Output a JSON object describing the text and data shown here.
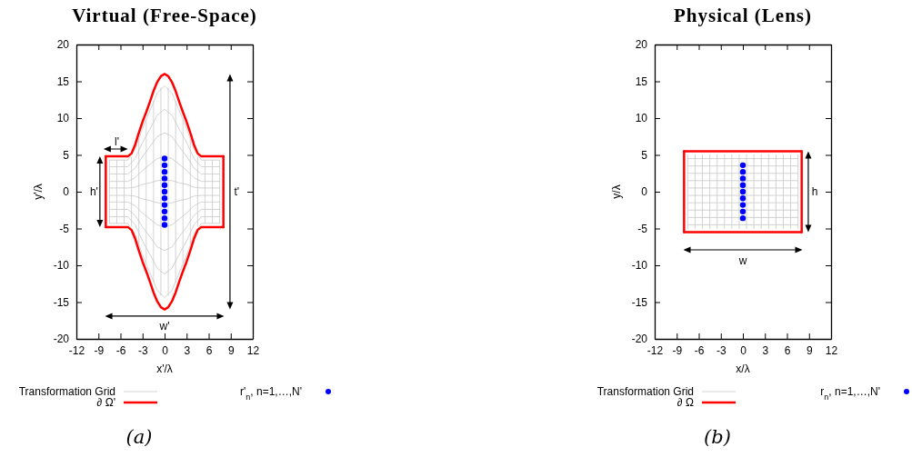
{
  "chart_data": [
    {
      "type": "line",
      "title": "Virtual (Free-Space)",
      "xlabel": "x'/λ",
      "ylabel": "y'/λ",
      "xlim": [
        -12,
        12
      ],
      "ylim": [
        -20,
        20
      ],
      "xticks": [
        -12,
        -9,
        -6,
        -3,
        0,
        3,
        6,
        9,
        12
      ],
      "yticks": [
        -20,
        -15,
        -10,
        -5,
        0,
        5,
        10,
        15,
        20
      ],
      "legend": "bottom",
      "annotations": [
        "l'",
        "h'",
        "t'",
        "w'",
        "(a)"
      ],
      "series": [
        {
          "name": "Transformation Grid",
          "type": "line",
          "color": "#c8c8c8",
          "x": [
            -7.5,
            -5,
            -4,
            -3,
            -2,
            -1,
            0,
            1,
            2,
            3,
            4,
            5,
            7.5
          ],
          "values": [
            4.3,
            4.3,
            5.8,
            8.6,
            11,
            13.4,
            14.4,
            13.4,
            11,
            8.6,
            5.8,
            4.3,
            4.3
          ]
        },
        {
          "type": "line",
          "color": "#c8c8c8",
          "x": [
            -7.5,
            -5,
            -4,
            -3,
            -2,
            -1,
            0,
            1,
            2,
            3,
            4,
            5,
            7.5
          ],
          "values": [
            3.4,
            3.4,
            4.5,
            6.7,
            8.5,
            10.4,
            11.2,
            10.4,
            8.5,
            6.7,
            4.5,
            3.4,
            3.4
          ]
        },
        {
          "type": "line",
          "color": "#c8c8c8",
          "x": [
            -7.5,
            -5,
            -4,
            -3,
            -2,
            -1,
            0,
            1,
            2,
            3,
            4,
            5,
            7.5
          ],
          "values": [
            2.4,
            2.4,
            3.2,
            4.8,
            6.1,
            7.5,
            8,
            7.5,
            6.1,
            4.8,
            3.2,
            2.4,
            2.4
          ]
        },
        {
          "type": "line",
          "color": "#c8c8c8",
          "x": [
            -7.5,
            -5,
            -4,
            -3,
            -2,
            -1,
            0,
            1,
            2,
            3,
            4,
            5,
            7.5
          ],
          "values": [
            1.4,
            1.4,
            1.9,
            2.9,
            3.7,
            4.5,
            4.8,
            4.5,
            3.7,
            2.9,
            1.9,
            1.4,
            1.4
          ]
        },
        {
          "type": "line",
          "color": "#c8c8c8",
          "x": [
            -7.5,
            -5,
            -4,
            -3,
            -2,
            -1,
            0,
            1,
            2,
            3,
            4,
            5,
            7.5
          ],
          "values": [
            0.5,
            0.5,
            0.6,
            1,
            1.2,
            1.5,
            1.6,
            1.5,
            1.2,
            1,
            0.6,
            0.5,
            0.5
          ]
        },
        {
          "type": "line",
          "color": "#c8c8c8",
          "x": [
            -7.5,
            -5,
            -4,
            -3,
            -2,
            -1,
            0,
            1,
            2,
            3,
            4,
            5,
            7.5
          ],
          "values": [
            -0.5,
            -0.5,
            -0.6,
            -1,
            -1.2,
            -1.5,
            -1.6,
            -1.5,
            -1.2,
            -1,
            -0.6,
            -0.5,
            -0.5
          ]
        },
        {
          "type": "line",
          "color": "#c8c8c8",
          "x": [
            -7.5,
            -5,
            -4,
            -3,
            -2,
            -1,
            0,
            1,
            2,
            3,
            4,
            5,
            7.5
          ],
          "values": [
            -1.4,
            -1.4,
            -1.9,
            -2.9,
            -3.7,
            -4.5,
            -4.8,
            -4.5,
            -3.7,
            -2.9,
            -1.9,
            -1.4,
            -1.4
          ]
        },
        {
          "type": "line",
          "color": "#c8c8c8",
          "x": [
            -7.5,
            -5,
            -4,
            -3,
            -2,
            -1,
            0,
            1,
            2,
            3,
            4,
            5,
            7.5
          ],
          "values": [
            -2.4,
            -2.4,
            -3.2,
            -4.8,
            -6.1,
            -7.5,
            -8,
            -7.5,
            -6.1,
            -4.8,
            -3.2,
            -2.4,
            -2.4
          ]
        },
        {
          "type": "line",
          "color": "#c8c8c8",
          "x": [
            -7.5,
            -5,
            -4,
            -3,
            -2,
            -1,
            0,
            1,
            2,
            3,
            4,
            5,
            7.5
          ],
          "values": [
            -3.4,
            -3.4,
            -4.5,
            -6.7,
            -8.5,
            -10.4,
            -11.2,
            -10.4,
            -8.5,
            -6.7,
            -4.5,
            -3.4,
            -3.4
          ]
        },
        {
          "type": "line",
          "color": "#c8c8c8",
          "x": [
            -7.5,
            -5,
            -4,
            -3,
            -2,
            -1,
            0,
            1,
            2,
            3,
            4,
            5,
            7.5
          ],
          "values": [
            -4.3,
            -4.3,
            -5.8,
            -8.6,
            -11,
            -13.4,
            -14.4,
            -13.4,
            -11,
            -8.6,
            -5.8,
            -4.3,
            -4.3
          ]
        },
        {
          "type": "line",
          "color": "#c8c8c8",
          "x": [
            -7.5,
            -7.5
          ],
          "values": [
            -4.3,
            4.3
          ]
        },
        {
          "type": "line",
          "color": "#c8c8c8",
          "x": [
            -6.5,
            -6.5
          ],
          "values": [
            -4.3,
            4.3
          ]
        },
        {
          "type": "line",
          "color": "#c8c8c8",
          "x": [
            -5.5,
            -5.5
          ],
          "values": [
            -4.3,
            4.3
          ]
        },
        {
          "type": "line",
          "color": "#c8c8c8",
          "x": [
            -4.5,
            -4.5
          ],
          "values": [
            -4.7,
            4.7
          ]
        },
        {
          "type": "line",
          "color": "#c8c8c8",
          "x": [
            -3.5,
            -3.5
          ],
          "values": [
            -7.2,
            7.2
          ]
        },
        {
          "type": "line",
          "color": "#c8c8c8",
          "x": [
            -2.5,
            -2.5
          ],
          "values": [
            -9.7,
            9.7
          ]
        },
        {
          "type": "line",
          "color": "#c8c8c8",
          "x": [
            -1.5,
            -1.5
          ],
          "values": [
            -12.3,
            12.3
          ]
        },
        {
          "type": "line",
          "color": "#c8c8c8",
          "x": [
            -0.5,
            -0.5
          ],
          "values": [
            -14.1,
            14.1
          ]
        },
        {
          "type": "line",
          "color": "#c8c8c8",
          "x": [
            0.5,
            0.5
          ],
          "values": [
            -14.1,
            14.1
          ]
        },
        {
          "type": "line",
          "color": "#c8c8c8",
          "x": [
            1.5,
            1.5
          ],
          "values": [
            -12.3,
            12.3
          ]
        },
        {
          "type": "line",
          "color": "#c8c8c8",
          "x": [
            2.5,
            2.5
          ],
          "values": [
            -9.7,
            9.7
          ]
        },
        {
          "type": "line",
          "color": "#c8c8c8",
          "x": [
            3.5,
            3.5
          ],
          "values": [
            -7.2,
            7.2
          ]
        },
        {
          "type": "line",
          "color": "#c8c8c8",
          "x": [
            4.5,
            4.5
          ],
          "values": [
            -4.7,
            4.7
          ]
        },
        {
          "type": "line",
          "color": "#c8c8c8",
          "x": [
            5.5,
            5.5
          ],
          "values": [
            -4.3,
            4.3
          ]
        },
        {
          "type": "line",
          "color": "#c8c8c8",
          "x": [
            6.5,
            6.5
          ],
          "values": [
            -4.3,
            4.3
          ]
        },
        {
          "type": "line",
          "color": "#c8c8c8",
          "x": [
            7.5,
            7.5
          ],
          "values": [
            -4.3,
            4.3
          ]
        },
        {
          "name": "∂ Ω'",
          "type": "line",
          "color": "#ff0000",
          "x": [
            -8,
            -5,
            -4.5,
            -4,
            -3.5,
            -3,
            -2.5,
            -2,
            -1.5,
            -1,
            -0.5,
            0,
            0.5,
            1,
            1.5,
            2,
            2.5,
            3,
            3.5,
            4,
            4.5,
            5,
            8
          ],
          "values": [
            4.8,
            4.8,
            5.2,
            6.4,
            8,
            9.5,
            10.8,
            12.2,
            13.7,
            14.9,
            15.7,
            16,
            15.7,
            14.9,
            13.7,
            12.2,
            10.8,
            9.5,
            8,
            6.4,
            5.2,
            4.8,
            4.8
          ]
        },
        {
          "type": "line",
          "color": "#ff0000",
          "x": [
            -8,
            -5,
            -4.5,
            -4,
            -3.5,
            -3,
            -2.5,
            -2,
            -1.5,
            -1,
            -0.5,
            0,
            0.5,
            1,
            1.5,
            2,
            2.5,
            3,
            3.5,
            4,
            4.5,
            5,
            8
          ],
          "values": [
            -4.8,
            -4.8,
            -5.2,
            -6.4,
            -8,
            -9.5,
            -10.8,
            -12.2,
            -13.7,
            -14.9,
            -15.7,
            -16,
            -15.7,
            -14.9,
            -13.7,
            -12.2,
            -10.8,
            -9.5,
            -8,
            -6.4,
            -5.2,
            -4.8,
            -4.8
          ]
        },
        {
          "type": "line",
          "color": "#ff0000",
          "x": [
            -8,
            -8
          ],
          "values": [
            -4.8,
            4.8
          ]
        },
        {
          "type": "line",
          "color": "#ff0000",
          "x": [
            8,
            8
          ],
          "values": [
            -4.8,
            4.8
          ]
        },
        {
          "name": "r'$_{n}$, n=1,…,N'",
          "type": "scatter",
          "marker": "circle",
          "color": "#0000ff",
          "x": [
            0,
            0,
            0,
            0,
            0,
            0,
            0,
            0,
            0,
            0,
            0
          ],
          "values": [
            -4.5,
            -3.6,
            -2.7,
            -1.8,
            -0.9,
            0,
            0.9,
            1.8,
            2.7,
            3.6,
            4.5
          ]
        }
      ]
    },
    {
      "type": "line",
      "title": "Physical (Lens)",
      "xlabel": "x/λ",
      "ylabel": "y/λ",
      "xlim": [
        -12,
        12
      ],
      "ylim": [
        -20,
        20
      ],
      "xticks": [
        -12,
        -9,
        -6,
        -3,
        0,
        3,
        6,
        9,
        12
      ],
      "yticks": [
        -20,
        -15,
        -10,
        -5,
        0,
        5,
        10,
        15,
        20
      ],
      "legend": "bottom",
      "annotations": [
        "h",
        "w",
        "(b)"
      ],
      "series": [
        {
          "name": "Transformation Grid",
          "type": "line",
          "color": "#c8c8c8",
          "x": [
            -7.5,
            -7.5
          ],
          "values": [
            -5,
            5
          ]
        },
        {
          "type": "line",
          "color": "#c8c8c8",
          "x": [
            -6.5,
            -6.5
          ],
          "values": [
            -5,
            5
          ]
        },
        {
          "type": "line",
          "color": "#c8c8c8",
          "x": [
            -5.5,
            -5.5
          ],
          "values": [
            -5,
            5
          ]
        },
        {
          "type": "line",
          "color": "#c8c8c8",
          "x": [
            -4.5,
            -4.5
          ],
          "values": [
            -5,
            5
          ]
        },
        {
          "type": "line",
          "color": "#c8c8c8",
          "x": [
            -3.5,
            -3.5
          ],
          "values": [
            -5,
            5
          ]
        },
        {
          "type": "line",
          "color": "#c8c8c8",
          "x": [
            -2.5,
            -2.5
          ],
          "values": [
            -5,
            5
          ]
        },
        {
          "type": "line",
          "color": "#c8c8c8",
          "x": [
            -1.5,
            -1.5
          ],
          "values": [
            -5,
            5
          ]
        },
        {
          "type": "line",
          "color": "#c8c8c8",
          "x": [
            -0.5,
            -0.5
          ],
          "values": [
            -5,
            5
          ]
        },
        {
          "type": "line",
          "color": "#c8c8c8",
          "x": [
            0.5,
            0.5
          ],
          "values": [
            -5,
            5
          ]
        },
        {
          "type": "line",
          "color": "#c8c8c8",
          "x": [
            1.5,
            1.5
          ],
          "values": [
            -5,
            5
          ]
        },
        {
          "type": "line",
          "color": "#c8c8c8",
          "x": [
            2.5,
            2.5
          ],
          "values": [
            -5,
            5
          ]
        },
        {
          "type": "line",
          "color": "#c8c8c8",
          "x": [
            3.5,
            3.5
          ],
          "values": [
            -5,
            5
          ]
        },
        {
          "type": "line",
          "color": "#c8c8c8",
          "x": [
            4.5,
            4.5
          ],
          "values": [
            -5,
            5
          ]
        },
        {
          "type": "line",
          "color": "#c8c8c8",
          "x": [
            5.5,
            5.5
          ],
          "values": [
            -5,
            5
          ]
        },
        {
          "type": "line",
          "color": "#c8c8c8",
          "x": [
            6.5,
            6.5
          ],
          "values": [
            -5,
            5
          ]
        },
        {
          "type": "line",
          "color": "#c8c8c8",
          "x": [
            7.5,
            7.5
          ],
          "values": [
            -5,
            5
          ]
        },
        {
          "type": "line",
          "color": "#c8c8c8",
          "x": [
            -7.5,
            7.5
          ],
          "values": [
            -4.5,
            -4.5
          ]
        },
        {
          "type": "line",
          "color": "#c8c8c8",
          "x": [
            -7.5,
            7.5
          ],
          "values": [
            -3.5,
            -3.5
          ]
        },
        {
          "type": "line",
          "color": "#c8c8c8",
          "x": [
            -7.5,
            7.5
          ],
          "values": [
            -2.5,
            -2.5
          ]
        },
        {
          "type": "line",
          "color": "#c8c8c8",
          "x": [
            -7.5,
            7.5
          ],
          "values": [
            -1.5,
            -1.5
          ]
        },
        {
          "type": "line",
          "color": "#c8c8c8",
          "x": [
            -7.5,
            7.5
          ],
          "values": [
            -0.5,
            -0.5
          ]
        },
        {
          "type": "line",
          "color": "#c8c8c8",
          "x": [
            -7.5,
            7.5
          ],
          "values": [
            0.5,
            0.5
          ]
        },
        {
          "type": "line",
          "color": "#c8c8c8",
          "x": [
            -7.5,
            7.5
          ],
          "values": [
            1.5,
            1.5
          ]
        },
        {
          "type": "line",
          "color": "#c8c8c8",
          "x": [
            -7.5,
            7.5
          ],
          "values": [
            2.5,
            2.5
          ]
        },
        {
          "type": "line",
          "color": "#c8c8c8",
          "x": [
            -7.5,
            7.5
          ],
          "values": [
            3.5,
            3.5
          ]
        },
        {
          "type": "line",
          "color": "#c8c8c8",
          "x": [
            -7.5,
            7.5
          ],
          "values": [
            4.5,
            4.5
          ]
        },
        {
          "name": "∂ Ω",
          "type": "line",
          "color": "#ff0000",
          "x": [
            -8,
            8
          ],
          "values": [
            5.5,
            5.5
          ]
        },
        {
          "type": "line",
          "color": "#ff0000",
          "x": [
            -8,
            8
          ],
          "values": [
            -5.5,
            -5.5
          ]
        },
        {
          "type": "line",
          "color": "#ff0000",
          "x": [
            -8,
            -8
          ],
          "values": [
            -5.5,
            5.5
          ]
        },
        {
          "type": "line",
          "color": "#ff0000",
          "x": [
            8,
            8
          ],
          "values": [
            -5.5,
            5.5
          ]
        },
        {
          "name": "r$_{n}$, n=1,…,N'",
          "type": "scatter",
          "marker": "circle",
          "color": "#0000ff",
          "x": [
            0,
            0,
            0,
            0,
            0,
            0,
            0,
            0,
            0
          ],
          "values": [
            -3.6,
            -2.7,
            -1.8,
            -0.9,
            0,
            0.9,
            1.8,
            2.7,
            3.6
          ]
        }
      ]
    }
  ]
}
